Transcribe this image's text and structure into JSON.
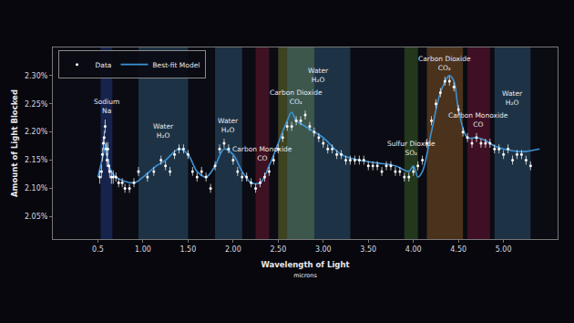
{
  "chart_data": {
    "type": "scatter",
    "xlabel": "Wavelength of Light",
    "xunit": "microns",
    "ylabel": "Amount of Light Blocked",
    "xlim": [
      0,
      5.6
    ],
    "ylim": [
      2.01,
      2.35
    ],
    "xticks": [
      0.5,
      {
        "value": 1.0,
        "label": "1.00"
      },
      {
        "value": 1.5,
        "label": "1.50"
      },
      {
        "value": 2.0,
        "label": "2.00"
      },
      {
        "value": 2.5,
        "label": "2.50"
      },
      {
        "value": 3.0,
        "label": "3.00"
      },
      {
        "value": 3.5,
        "label": "3.50"
      },
      {
        "value": 4.0,
        "label": "4.00"
      },
      {
        "value": 4.5,
        "label": "4.50"
      },
      {
        "value": 5.0,
        "label": "5.00"
      }
    ],
    "yticks": [
      {
        "value": 2.05,
        "label": "2.05%"
      },
      {
        "value": 2.1,
        "label": "2.10%"
      },
      {
        "value": 2.15,
        "label": "2.15%"
      },
      {
        "value": 2.2,
        "label": "2.20%"
      },
      {
        "value": 2.25,
        "label": "2.25%"
      },
      {
        "value": 2.3,
        "label": "2.30%"
      }
    ],
    "grid": false,
    "legend": "upper left",
    "series": [
      {
        "name": "Data",
        "type": "scatter",
        "marker": "circle",
        "color": "#ffffff",
        "x": [
          0.52,
          0.54,
          0.55,
          0.56,
          0.57,
          0.58,
          0.59,
          0.6,
          0.61,
          0.62,
          0.63,
          0.65,
          0.67,
          0.7,
          0.73,
          0.77,
          0.8,
          0.85,
          0.9,
          0.95,
          1.05,
          1.12,
          1.2,
          1.25,
          1.3,
          1.35,
          1.4,
          1.45,
          1.5,
          1.55,
          1.6,
          1.65,
          1.7,
          1.75,
          1.8,
          1.85,
          1.9,
          1.95,
          2.0,
          2.05,
          2.1,
          2.15,
          2.2,
          2.25,
          2.3,
          2.35,
          2.4,
          2.45,
          2.5,
          2.55,
          2.6,
          2.65,
          2.7,
          2.75,
          2.8,
          2.85,
          2.9,
          2.95,
          3.0,
          3.05,
          3.1,
          3.15,
          3.2,
          3.25,
          3.3,
          3.35,
          3.4,
          3.45,
          3.5,
          3.55,
          3.6,
          3.65,
          3.7,
          3.75,
          3.8,
          3.85,
          3.9,
          3.95,
          4.0,
          4.05,
          4.1,
          4.15,
          4.2,
          4.25,
          4.3,
          4.35,
          4.4,
          4.45,
          4.5,
          4.55,
          4.6,
          4.65,
          4.7,
          4.75,
          4.8,
          4.85,
          4.9,
          4.95,
          5.0,
          5.05,
          5.1,
          5.15,
          5.2,
          5.25,
          5.3
        ],
        "values": [
          2.12,
          2.13,
          2.16,
          2.18,
          2.19,
          2.21,
          2.17,
          2.15,
          2.17,
          2.14,
          2.13,
          2.12,
          2.12,
          2.12,
          2.11,
          2.11,
          2.1,
          2.1,
          2.11,
          2.13,
          2.12,
          2.13,
          2.15,
          2.14,
          2.13,
          2.16,
          2.17,
          2.17,
          2.16,
          2.13,
          2.12,
          2.13,
          2.12,
          2.1,
          2.14,
          2.17,
          2.18,
          2.17,
          2.15,
          2.13,
          2.12,
          2.12,
          2.11,
          2.1,
          2.11,
          2.12,
          2.13,
          2.15,
          2.17,
          2.19,
          2.21,
          2.21,
          2.22,
          2.22,
          2.23,
          2.21,
          2.2,
          2.19,
          2.18,
          2.17,
          2.17,
          2.16,
          2.16,
          2.15,
          2.15,
          2.15,
          2.15,
          2.15,
          2.14,
          2.14,
          2.14,
          2.13,
          2.14,
          2.14,
          2.13,
          2.13,
          2.12,
          2.12,
          2.13,
          2.14,
          2.15,
          2.18,
          2.22,
          2.25,
          2.27,
          2.29,
          2.29,
          2.28,
          2.24,
          2.2,
          2.19,
          2.18,
          2.19,
          2.18,
          2.18,
          2.18,
          2.17,
          2.17,
          2.16,
          2.17,
          2.15,
          2.16,
          2.16,
          2.15,
          2.14
        ],
        "errors": [
          0.012,
          0.012,
          0.012,
          0.012,
          0.012,
          0.012,
          0.012,
          0.012,
          0.012,
          0.012,
          0.012,
          0.012,
          0.012,
          0.008,
          0.008,
          0.008,
          0.008,
          0.008,
          0.008,
          0.008,
          0.008,
          0.008,
          0.008,
          0.008,
          0.008,
          0.008,
          0.008,
          0.008,
          0.008,
          0.008,
          0.008,
          0.008,
          0.008,
          0.008,
          0.008,
          0.008,
          0.008,
          0.008,
          0.008,
          0.008,
          0.008,
          0.008,
          0.008,
          0.008,
          0.008,
          0.008,
          0.008,
          0.008,
          0.008,
          0.008,
          0.008,
          0.008,
          0.008,
          0.008,
          0.008,
          0.008,
          0.008,
          0.008,
          0.008,
          0.008,
          0.008,
          0.008,
          0.008,
          0.008,
          0.008,
          0.008,
          0.008,
          0.008,
          0.008,
          0.008,
          0.008,
          0.008,
          0.008,
          0.008,
          0.008,
          0.008,
          0.008,
          0.008,
          0.008,
          0.008,
          0.008,
          0.008,
          0.008,
          0.008,
          0.008,
          0.008,
          0.008,
          0.008,
          0.008,
          0.008,
          0.008,
          0.008,
          0.008,
          0.008,
          0.008,
          0.008,
          0.008,
          0.008,
          0.008,
          0.008,
          0.008,
          0.008,
          0.008,
          0.008,
          0.008
        ]
      },
      {
        "name": "Best-fit Model",
        "type": "line",
        "line_style": "solid",
        "color": "#3d92d6",
        "x": [
          0.5,
          0.56,
          0.59,
          0.62,
          0.7,
          0.9,
          1.0,
          1.15,
          1.25,
          1.4,
          1.5,
          1.6,
          1.7,
          1.8,
          1.9,
          2.0,
          2.1,
          2.2,
          2.3,
          2.4,
          2.5,
          2.6,
          2.65,
          2.7,
          2.8,
          2.9,
          3.0,
          3.2,
          3.4,
          3.6,
          3.8,
          3.95,
          4.0,
          4.05,
          4.1,
          4.2,
          4.3,
          4.4,
          4.45,
          4.5,
          4.6,
          4.7,
          4.8,
          4.9,
          5.0,
          5.2,
          5.4
        ],
        "values": [
          2.12,
          2.16,
          2.18,
          2.14,
          2.12,
          2.11,
          2.12,
          2.14,
          2.15,
          2.17,
          2.16,
          2.13,
          2.12,
          2.14,
          2.17,
          2.16,
          2.13,
          2.11,
          2.11,
          2.14,
          2.18,
          2.22,
          2.235,
          2.22,
          2.21,
          2.2,
          2.19,
          2.16,
          2.15,
          2.145,
          2.14,
          2.13,
          2.14,
          2.12,
          2.13,
          2.2,
          2.27,
          2.3,
          2.29,
          2.24,
          2.19,
          2.19,
          2.185,
          2.175,
          2.17,
          2.165,
          2.17
        ]
      }
    ],
    "bands": [
      {
        "name": "Sodium",
        "formula": "Na",
        "range": [
          0.53,
          0.66
        ],
        "color": "#2a4fb8"
      },
      {
        "name": "Water",
        "formula": "H₂O",
        "range": [
          0.95,
          1.5
        ],
        "color": "#3f7fa0"
      },
      {
        "name": "Water",
        "formula": "H₂O",
        "range": [
          1.8,
          2.1
        ],
        "color": "#3f7fa0"
      },
      {
        "name": "Carbon Monoxide",
        "formula": "CO",
        "range": [
          2.25,
          2.4
        ],
        "color": "#a0203f"
      },
      {
        "name": "Carbon Dioxide",
        "formula": "CO₂",
        "range": [
          2.5,
          2.9
        ],
        "color": "#9aab3a"
      },
      {
        "name": "Water",
        "formula": "H₂O",
        "range": [
          2.6,
          3.3
        ],
        "color": "#3f7fa0"
      },
      {
        "name": "Sulfur Dioxide",
        "formula": "SO₂",
        "range": [
          3.9,
          4.05
        ],
        "color": "#4f8a2a"
      },
      {
        "name": "Carbon Dioxide",
        "formula": "CO₂",
        "range": [
          4.15,
          4.55
        ],
        "color": "#c07a2a"
      },
      {
        "name": "Carbon Monoxide",
        "formula": "CO",
        "range": [
          4.6,
          4.85
        ],
        "color": "#a01a45"
      },
      {
        "name": "Water",
        "formula": "H₂O",
        "range": [
          4.9,
          5.3
        ],
        "color": "#3f7fa0"
      }
    ]
  }
}
